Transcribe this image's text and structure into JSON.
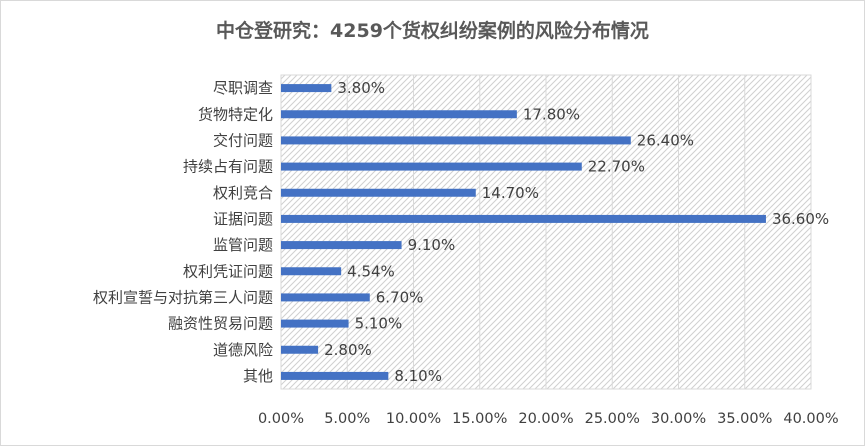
{
  "chart_data": {
    "type": "bar",
    "orientation": "horizontal",
    "title": "中仓登研究：4259个货权纠纷案例的风险分布情况",
    "categories": [
      "尽职调查",
      "货物特定化",
      "交付问题",
      "持续占有问题",
      "权利竞合",
      "证据问题",
      "监管问题",
      "权利凭证问题",
      "权利宣誓与对抗第三人问题",
      "融资性贸易问题",
      "道德风险",
      "其他"
    ],
    "values": [
      3.8,
      17.8,
      26.4,
      22.7,
      14.7,
      36.6,
      9.1,
      4.54,
      6.7,
      5.1,
      2.8,
      8.1
    ],
    "data_labels": [
      "3.80%",
      "17.80%",
      "26.40%",
      "22.70%",
      "14.70%",
      "36.60%",
      "9.10%",
      "4.54%",
      "6.70%",
      "5.10%",
      "2.80%",
      "8.10%"
    ],
    "x_ticks": [
      "0.00%",
      "5.00%",
      "10.00%",
      "15.00%",
      "20.00%",
      "25.00%",
      "30.00%",
      "35.00%",
      "40.00%"
    ],
    "xlim": [
      0,
      40
    ],
    "bar_color": "#4472c4",
    "plot_background": "diagonal-hatch",
    "grid": true,
    "xlabel": "",
    "ylabel": ""
  }
}
